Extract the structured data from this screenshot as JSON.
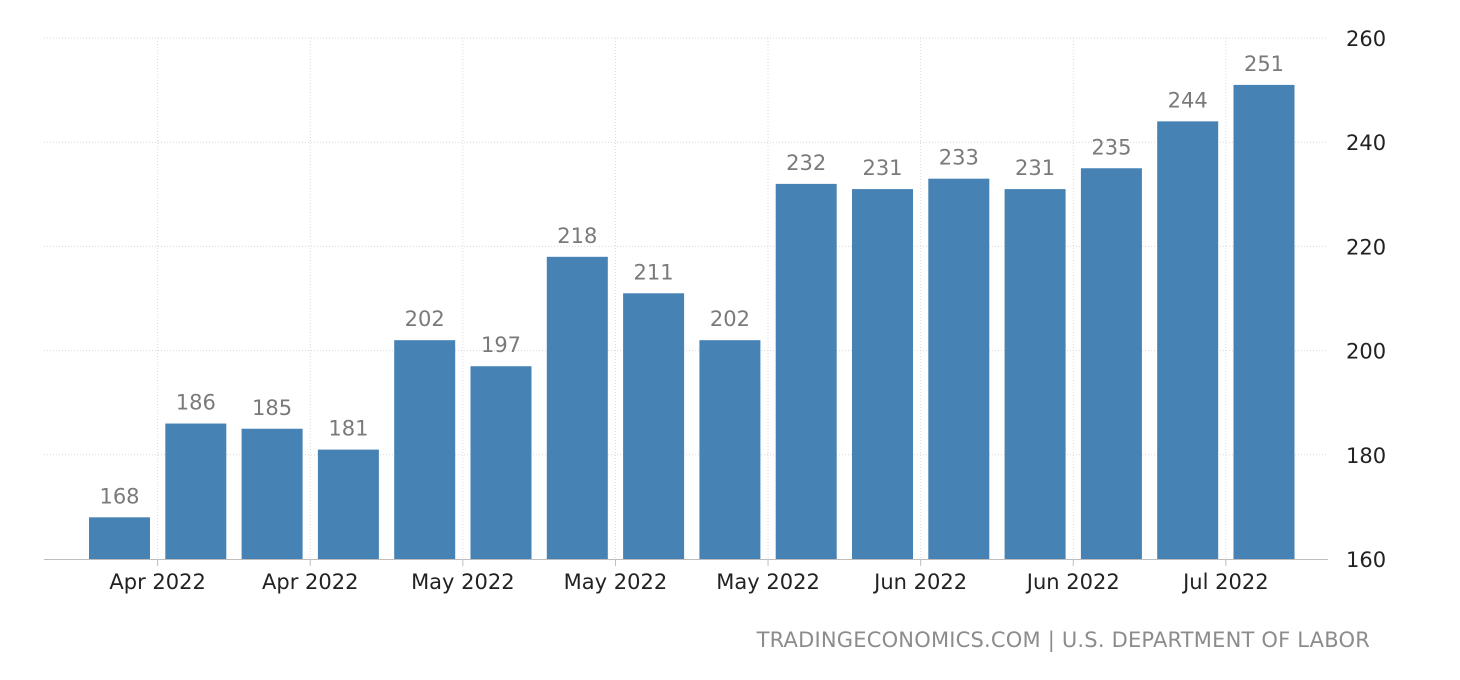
{
  "chart_data": {
    "type": "bar",
    "categories": [
      "Apr 2022",
      "Apr 2022",
      "Apr 2022",
      "Apr 2022",
      "May 2022",
      "May 2022",
      "May 2022",
      "May 2022",
      "May 2022",
      "Jun 2022",
      "Jun 2022",
      "Jun 2022",
      "Jun 2022",
      "Jun 2022",
      "Jul 2022",
      "Jul 2022"
    ],
    "values": [
      168,
      186,
      185,
      181,
      202,
      197,
      218,
      211,
      202,
      232,
      231,
      233,
      231,
      235,
      244,
      251
    ],
    "data_labels": [
      "168",
      "186",
      "185",
      "181",
      "202",
      "197",
      "218",
      "211",
      "202",
      "232",
      "231",
      "233",
      "231",
      "235",
      "244",
      "251"
    ],
    "x_tick_labels": [
      {
        "label": "Apr 2022",
        "index": 0.5
      },
      {
        "label": "Apr 2022",
        "index": 2.5
      },
      {
        "label": "May 2022",
        "index": 4.5
      },
      {
        "label": "May 2022",
        "index": 6.5
      },
      {
        "label": "May 2022",
        "index": 8.5
      },
      {
        "label": "Jun 2022",
        "index": 10.5
      },
      {
        "label": "Jun 2022",
        "index": 12.5
      },
      {
        "label": "Jul 2022",
        "index": 14.5
      }
    ],
    "y_ticks": [
      160,
      180,
      200,
      220,
      240,
      260
    ],
    "ylim": [
      160,
      260
    ],
    "yaxis_position": "right",
    "grid": true,
    "bar_color": "#4682b4",
    "label_color": "#7a7a7a",
    "title": "",
    "xlabel": "",
    "ylabel": ""
  },
  "source": {
    "text": "TRADINGECONOMICS.COM | U.S. DEPARTMENT OF LABOR"
  }
}
